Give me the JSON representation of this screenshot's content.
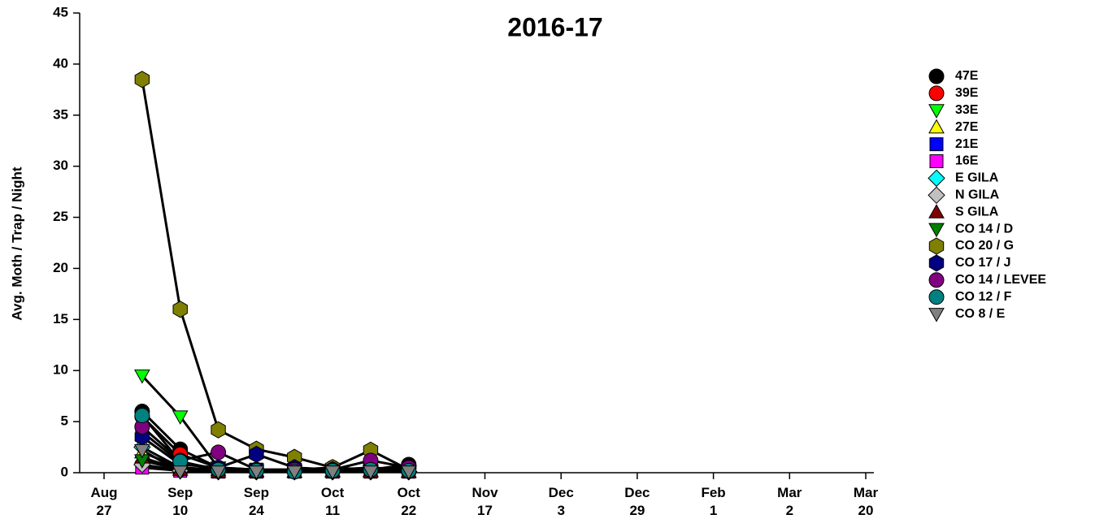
{
  "chart_data": {
    "type": "line",
    "title": "2016-17",
    "y_label": "Avg. Moth / Trap / Night",
    "categories": [
      "Aug 27",
      null,
      "Sep 10",
      null,
      "Sep 24",
      null,
      "Oct 11",
      null,
      "Oct 22",
      null,
      "Nov 17",
      null,
      "Dec 3",
      null,
      "Dec 29",
      null,
      "Feb 1",
      null,
      "Mar 2",
      null,
      "Mar 20"
    ],
    "ylim": [
      0,
      45
    ],
    "yticks": [
      0,
      5,
      10,
      15,
      20,
      25,
      30,
      35,
      40,
      45
    ],
    "line_color": "#000000",
    "legend": "right",
    "series": [
      {
        "name": "47E",
        "color": "#000000",
        "marker": "circle",
        "values": [
          null,
          6,
          2.3,
          0.5,
          0.3,
          0.3,
          0.5,
          0.3,
          0.8,
          null,
          null,
          null,
          null,
          null,
          null,
          null,
          null,
          null,
          null,
          null,
          null
        ]
      },
      {
        "name": "39E",
        "color": "#ff0000",
        "marker": "circle",
        "values": [
          null,
          5.5,
          1.8,
          0.5,
          0.2,
          0.2,
          0.3,
          0.3,
          0.5,
          null,
          null,
          null,
          null,
          null,
          null,
          null,
          null,
          null,
          null,
          null,
          null
        ]
      },
      {
        "name": "33E",
        "color": "#00ff00",
        "marker": "triangle-down",
        "values": [
          null,
          9.5,
          5.5,
          0.5,
          0.3,
          0.2,
          0.3,
          0.2,
          0.2,
          null,
          null,
          null,
          null,
          null,
          null,
          null,
          null,
          null,
          null,
          null,
          null
        ]
      },
      {
        "name": "27E",
        "color": "#ffff00",
        "marker": "triangle-up",
        "values": [
          null,
          2,
          0.5,
          0.3,
          0.2,
          0.1,
          0.2,
          0.2,
          0.1,
          null,
          null,
          null,
          null,
          null,
          null,
          null,
          null,
          null,
          null,
          null,
          null
        ]
      },
      {
        "name": "21E",
        "color": "#0000ff",
        "marker": "square",
        "values": [
          null,
          4,
          1,
          0.3,
          0.3,
          0.2,
          0.3,
          0.3,
          0.2,
          null,
          null,
          null,
          null,
          null,
          null,
          null,
          null,
          null,
          null,
          null,
          null
        ]
      },
      {
        "name": "16E",
        "color": "#ff00ff",
        "marker": "square",
        "values": [
          null,
          0.5,
          0.2,
          0.1,
          0.1,
          0.1,
          0.1,
          0.1,
          0.1,
          null,
          null,
          null,
          null,
          null,
          null,
          null,
          null,
          null,
          null,
          null,
          null
        ]
      },
      {
        "name": "E GILA",
        "color": "#00ffff",
        "marker": "diamond",
        "values": [
          null,
          2.5,
          0.5,
          0.2,
          0.1,
          0.1,
          0.1,
          0.1,
          0.1,
          null,
          null,
          null,
          null,
          null,
          null,
          null,
          null,
          null,
          null,
          null,
          null
        ]
      },
      {
        "name": "N GILA",
        "color": "#c0c0c0",
        "marker": "diamond",
        "values": [
          null,
          0.8,
          0.2,
          0.1,
          0.1,
          0.1,
          0.1,
          0.1,
          0.1,
          null,
          null,
          null,
          null,
          null,
          null,
          null,
          null,
          null,
          null,
          null,
          null
        ]
      },
      {
        "name": "S GILA",
        "color": "#800000",
        "marker": "triangle-up",
        "values": [
          null,
          1.5,
          0.3,
          0.1,
          0.1,
          0.1,
          0.1,
          0.1,
          0.1,
          null,
          null,
          null,
          null,
          null,
          null,
          null,
          null,
          null,
          null,
          null,
          null
        ]
      },
      {
        "name": "CO 14 / D",
        "color": "#008000",
        "marker": "triangle-down",
        "values": [
          null,
          1.2,
          0.3,
          0.1,
          0.1,
          0.1,
          0.1,
          0.1,
          0.1,
          null,
          null,
          null,
          null,
          null,
          null,
          null,
          null,
          null,
          null,
          null,
          null
        ]
      },
      {
        "name": "CO 20 / G",
        "color": "#808000",
        "marker": "hexagon",
        "values": [
          null,
          38.5,
          16,
          4.2,
          2.3,
          1.5,
          0.5,
          2.2,
          0.3,
          null,
          null,
          null,
          null,
          null,
          null,
          null,
          null,
          null,
          null,
          null,
          null
        ]
      },
      {
        "name": "CO 17 / J",
        "color": "#000080",
        "marker": "hexagon",
        "values": [
          null,
          3.5,
          0.8,
          0.5,
          1.8,
          0.5,
          0.3,
          0.5,
          0.3,
          null,
          null,
          null,
          null,
          null,
          null,
          null,
          null,
          null,
          null,
          null,
          null
        ]
      },
      {
        "name": "CO 14 / LEVEE",
        "color": "#800080",
        "marker": "circle",
        "values": [
          null,
          4.5,
          1.2,
          2,
          0.3,
          0.3,
          0.3,
          1.2,
          0.5,
          null,
          null,
          null,
          null,
          null,
          null,
          null,
          null,
          null,
          null,
          null,
          null
        ]
      },
      {
        "name": "CO 12 / F",
        "color": "#008080",
        "marker": "circle",
        "values": [
          null,
          5.6,
          1.1,
          0.3,
          0.2,
          0.1,
          0.2,
          0.3,
          0.2,
          null,
          null,
          null,
          null,
          null,
          null,
          null,
          null,
          null,
          null,
          null,
          null
        ]
      },
      {
        "name": "CO 8 / E",
        "color": "#808080",
        "marker": "triangle-down",
        "values": [
          null,
          2.2,
          0.1,
          0.1,
          0.1,
          0.1,
          0.1,
          0.1,
          0.1,
          null,
          null,
          null,
          null,
          null,
          null,
          null,
          null,
          null,
          null,
          null,
          null
        ]
      }
    ]
  }
}
